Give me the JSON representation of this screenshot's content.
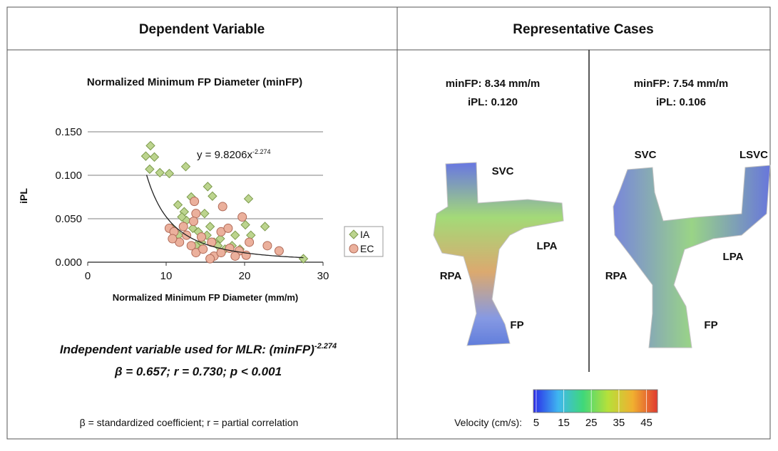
{
  "headers": [
    "Dependent Variable",
    "Representative Cases"
  ],
  "chart_data": {
    "type": "scatter",
    "title": "Normalized Minimum FP Diameter (minFP)",
    "x_label": "Normalized Minimum FP Diameter (mm/m)",
    "y_label": "iPL",
    "xlim": [
      0,
      30
    ],
    "xticks": [
      0,
      10,
      20,
      30
    ],
    "ylim": [
      0,
      0.15
    ],
    "yticks": [
      {
        "value": 0,
        "label": "0.000"
      },
      {
        "value": 0.05,
        "label": "0.050"
      },
      {
        "value": 0.1,
        "label": "0.100"
      },
      {
        "value": 0.15,
        "label": "0.150"
      }
    ],
    "grid": true,
    "legend": "right",
    "series": [
      {
        "name": "IA",
        "marker": "diamond",
        "color": "#bcd48e",
        "stroke": "#7c9a4c",
        "x": [
          8.0,
          7.4,
          8.5,
          7.9,
          9.2,
          10.4,
          12.5,
          15.3,
          13.2,
          15.9,
          11.5,
          14.9,
          12.3,
          20.5,
          20.1,
          20.8,
          22.6,
          27.5,
          12.6,
          13.4,
          14.1,
          15.2,
          16.1,
          16.6,
          17.5,
          14.5,
          10.7,
          11.6,
          15.6,
          18.8,
          13.8,
          18.4,
          12.0,
          16.9,
          19.4
        ],
        "y": [
          0.134,
          0.122,
          0.121,
          0.107,
          0.103,
          0.102,
          0.11,
          0.087,
          0.075,
          0.076,
          0.066,
          0.056,
          0.058,
          0.073,
          0.043,
          0.031,
          0.041,
          0.004,
          0.048,
          0.039,
          0.035,
          0.031,
          0.023,
          0.019,
          0.015,
          0.023,
          0.039,
          0.031,
          0.041,
          0.031,
          0.019,
          0.019,
          0.052,
          0.027,
          0.015
        ]
      },
      {
        "name": "EC",
        "marker": "circle",
        "color": "#ebb09c",
        "stroke": "#b06a58",
        "x": [
          13.6,
          19.7,
          17.2,
          13.8,
          13.5,
          10.4,
          11.0,
          12.2,
          12.6,
          14.5,
          15.8,
          17.0,
          17.9,
          20.6,
          22.9,
          24.4,
          16.1,
          15.6,
          17.0,
          18.1,
          19.3,
          20.2,
          13.2,
          13.8,
          14.7,
          18.8,
          11.7,
          10.8
        ],
        "y": [
          0.07,
          0.052,
          0.064,
          0.056,
          0.047,
          0.039,
          0.035,
          0.041,
          0.031,
          0.029,
          0.023,
          0.035,
          0.039,
          0.023,
          0.019,
          0.013,
          0.007,
          0.004,
          0.011,
          0.016,
          0.013,
          0.008,
          0.019,
          0.011,
          0.015,
          0.007,
          0.023,
          0.027
        ]
      }
    ],
    "fit": {
      "coefficient": 9.8206,
      "exponent": -2.274,
      "xrange": [
        7.5,
        27.5
      ]
    },
    "equation": "y = 9.8206x",
    "equation_exponent": "-2.274"
  },
  "mlr": {
    "text": "Independent variable used for  MLR: (minFP)",
    "exponent": "-2.274",
    "stats": "β = 0.657; r = 0.730; p < 0.001"
  },
  "footnote": "β = standardized coefficient; r = partial correlation",
  "cases": [
    {
      "minFP": "minFP: 8.34 mm/m",
      "iPL": "iPL: 0.120",
      "labels": [
        "SVC",
        "LPA",
        "RPA",
        "FP"
      ]
    },
    {
      "minFP": "minFP: 7.54 mm/m",
      "iPL": "iPL: 0.106",
      "labels": [
        "SVC",
        "LSVC",
        "LPA",
        "RPA",
        "FP"
      ]
    }
  ],
  "colorbar": {
    "label": "Velocity (cm/s):",
    "lim": [
      4,
      49
    ],
    "ticks": [
      5,
      15,
      25,
      35,
      45
    ]
  }
}
